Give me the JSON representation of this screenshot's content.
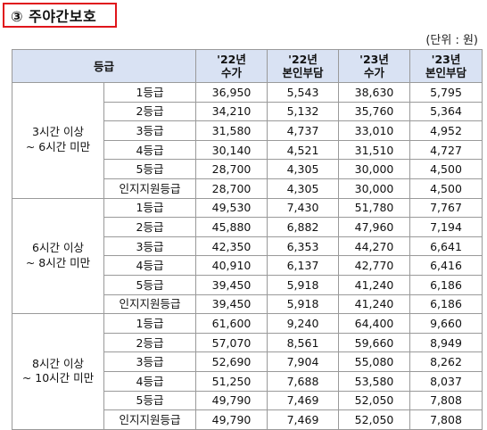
{
  "title": "③ 주야간보호",
  "unit": "(단위 : 원)",
  "table": {
    "header": {
      "grade": "등급",
      "cols": [
        "'22년\n수가",
        "'22년\n본인부담",
        "'23년\n수가",
        "'23년\n본인부담"
      ]
    },
    "groups": [
      {
        "category": "3시간 이상\n~ 6시간 미만",
        "rows": [
          {
            "grade": "1등급",
            "values": [
              "36,950",
              "5,543",
              "38,630",
              "5,795"
            ]
          },
          {
            "grade": "2등급",
            "values": [
              "34,210",
              "5,132",
              "35,760",
              "5,364"
            ]
          },
          {
            "grade": "3등급",
            "values": [
              "31,580",
              "4,737",
              "33,010",
              "4,952"
            ]
          },
          {
            "grade": "4등급",
            "values": [
              "30,140",
              "4,521",
              "31,510",
              "4,727"
            ]
          },
          {
            "grade": "5등급",
            "values": [
              "28,700",
              "4,305",
              "30,000",
              "4,500"
            ]
          },
          {
            "grade": "인지지원등급",
            "values": [
              "28,700",
              "4,305",
              "30,000",
              "4,500"
            ]
          }
        ]
      },
      {
        "category": "6시간 이상\n~ 8시간 미만",
        "rows": [
          {
            "grade": "1등급",
            "values": [
              "49,530",
              "7,430",
              "51,780",
              "7,767"
            ]
          },
          {
            "grade": "2등급",
            "values": [
              "45,880",
              "6,882",
              "47,960",
              "7,194"
            ]
          },
          {
            "grade": "3등급",
            "values": [
              "42,350",
              "6,353",
              "44,270",
              "6,641"
            ]
          },
          {
            "grade": "4등급",
            "values": [
              "40,910",
              "6,137",
              "42,770",
              "6,416"
            ]
          },
          {
            "grade": "5등급",
            "values": [
              "39,450",
              "5,918",
              "41,240",
              "6,186"
            ]
          },
          {
            "grade": "인지지원등급",
            "values": [
              "39,450",
              "5,918",
              "41,240",
              "6,186"
            ]
          }
        ]
      },
      {
        "category": "8시간 이상\n~ 10시간 미만",
        "rows": [
          {
            "grade": "1등급",
            "values": [
              "61,600",
              "9,240",
              "64,400",
              "9,660"
            ]
          },
          {
            "grade": "2등급",
            "values": [
              "57,070",
              "8,561",
              "59,660",
              "8,949"
            ]
          },
          {
            "grade": "3등급",
            "values": [
              "52,690",
              "7,904",
              "55,080",
              "8,262"
            ]
          },
          {
            "grade": "4등급",
            "values": [
              "51,250",
              "7,688",
              "53,580",
              "8,037"
            ]
          },
          {
            "grade": "5등급",
            "values": [
              "49,790",
              "7,469",
              "52,050",
              "7,808"
            ]
          },
          {
            "grade": "인지지원등급",
            "values": [
              "49,790",
              "7,469",
              "52,050",
              "7,808"
            ]
          }
        ]
      }
    ]
  },
  "colors": {
    "title_border": "#e0151b",
    "header_bg": "#d9e2f3"
  }
}
